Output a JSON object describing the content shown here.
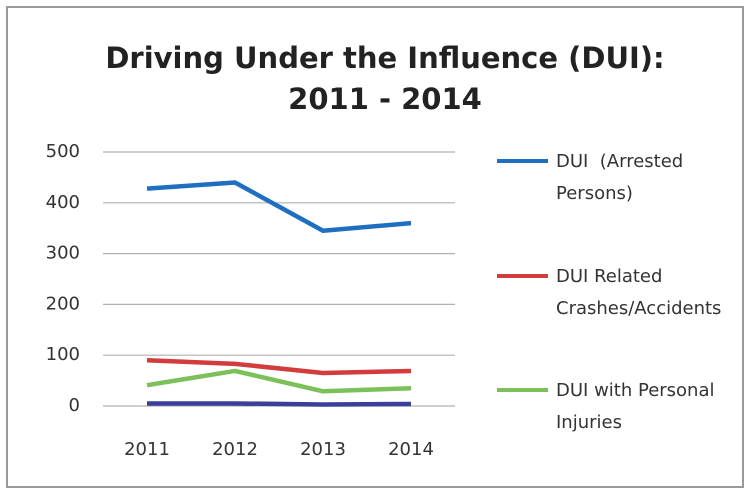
{
  "chart_data": {
    "type": "line",
    "title": "Driving Under the Influence (DUI): 2011 - 2014",
    "categories": [
      "2011",
      "2012",
      "2013",
      "2014"
    ],
    "series": [
      {
        "name": "DUI  (Arrested Persons)",
        "color": "#1f6fc0",
        "values": [
          428,
          440,
          345,
          360
        ]
      },
      {
        "name": "DUI Related Crashes/Accidents",
        "color": "#d23c3c",
        "values": [
          90,
          83,
          65,
          69
        ]
      },
      {
        "name": "DUI with Personal Injuries",
        "color": "#7cc05a",
        "values": [
          41,
          69,
          29,
          35
        ]
      },
      {
        "name": null,
        "color": "#3b3f9a",
        "values": [
          5,
          5,
          3,
          4
        ]
      }
    ],
    "ylim": [
      0,
      500
    ],
    "yticks": [
      0,
      100,
      200,
      300,
      400,
      500
    ],
    "grid": true,
    "legend": "right"
  }
}
